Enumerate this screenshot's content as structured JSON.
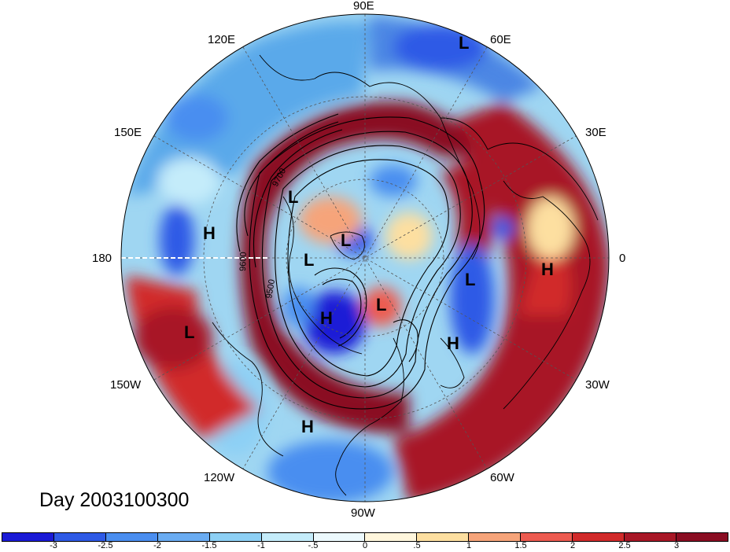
{
  "title": "Day 2003100300",
  "longitude_labels": {
    "n90e": "90E",
    "n120e": "120E",
    "n60e": "60E",
    "n150e": "150E",
    "n30e": "30E",
    "n180": "180",
    "n0": "0",
    "n150w": "150W",
    "n30w": "30W",
    "n120w": "120W",
    "n60w": "60W",
    "n90w": "90W"
  },
  "pressure_systems": [
    {
      "type": "L"
    },
    {
      "type": "L"
    },
    {
      "type": "L"
    },
    {
      "type": "L"
    },
    {
      "type": "L"
    },
    {
      "type": "L"
    },
    {
      "type": "L"
    },
    {
      "type": "H"
    },
    {
      "type": "H"
    },
    {
      "type": "H"
    },
    {
      "type": "H"
    },
    {
      "type": "H"
    }
  ],
  "contour_labels": [
    "9700",
    "9600",
    "9500"
  ],
  "colorbar": {
    "ticks": [
      "-3",
      "-2.5",
      "-2",
      "-1.5",
      "-1",
      "-.5",
      "0",
      ".5",
      "1",
      "1.5",
      "2",
      "2.5",
      "3"
    ],
    "colors": [
      "#1a1ad6",
      "#2e5ae6",
      "#4a8ef0",
      "#6aacf2",
      "#8dd0f5",
      "#c4ecfa",
      "#ecf9fd",
      "#fff6dc",
      "#fddfa0",
      "#f6a47a",
      "#ed5b50",
      "#d12a2a",
      "#a81726",
      "#8a0d22"
    ]
  }
}
